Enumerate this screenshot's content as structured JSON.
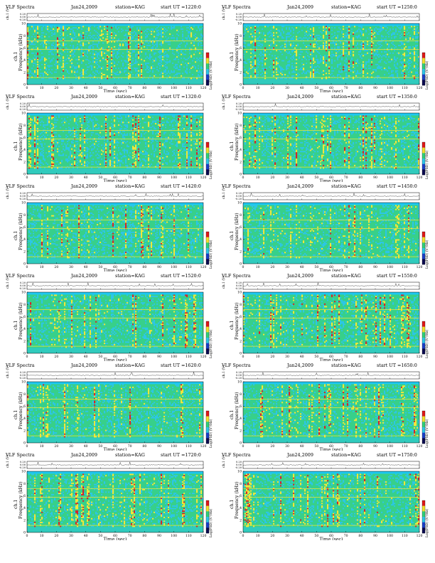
{
  "chart_data": [
    {
      "type": "heatmap",
      "title": "VLF Spectra",
      "date": "Jan24,2009",
      "station": "station=KAG",
      "start": "start  UT  =1220:0",
      "ch_label": "ch.1 (V)",
      "ch_ticks": [
        "0.20",
        "0.00",
        "-0.20"
      ],
      "ylabel_top": "ch.1",
      "ylabel": "Frequency  (kHz)",
      "y_ticks": [
        "0",
        "2",
        "4",
        "6",
        "8",
        "10"
      ],
      "ylim": [
        0,
        10
      ],
      "xlabel": "Time  (sec)",
      "x_ticks": [
        "0",
        "10",
        "20",
        "30",
        "40",
        "50",
        "60",
        "70",
        "80",
        "90",
        "100",
        "110",
        "120"
      ],
      "xlim": [
        0,
        120
      ],
      "colorbar_label": "Log(PSD) (V²/Hz)",
      "seed": 11
    },
    {
      "type": "heatmap",
      "title": "VLF Spectra",
      "date": "Jan24,2009",
      "station": "station=KAG",
      "start": "start  UT  =1250:0",
      "ch_label": "ch.1 (V)",
      "ch_ticks": [
        "0.20",
        "0.00",
        "-0.20"
      ],
      "ylabel_top": "ch.1",
      "ylabel": "Frequency  (kHz)",
      "y_ticks": [
        "0",
        "2",
        "4",
        "6",
        "8",
        "10"
      ],
      "ylim": [
        0,
        10
      ],
      "xlabel": "Time  (sec)",
      "x_ticks": [
        "0",
        "10",
        "20",
        "30",
        "40",
        "50",
        "60",
        "70",
        "80",
        "90",
        "100",
        "110",
        "120"
      ],
      "xlim": [
        0,
        120
      ],
      "colorbar_label": "Log(PSD) (V²/Hz)",
      "seed": 23
    },
    {
      "type": "heatmap",
      "title": "VLF Spectra",
      "date": "Jan24,2009",
      "station": "station=KAG",
      "start": "start  UT  =1320:0",
      "ch_label": "ch.1 (V)",
      "ch_ticks": [
        "0.20",
        "0.00",
        "-0.20"
      ],
      "ylabel_top": "ch.1",
      "ylabel": "Frequency  (kHz)",
      "y_ticks": [
        "0",
        "2",
        "4",
        "6",
        "8",
        "10"
      ],
      "ylim": [
        0,
        10
      ],
      "xlabel": "Time  (sec)",
      "x_ticks": [
        "0",
        "10",
        "20",
        "30",
        "40",
        "50",
        "60",
        "70",
        "80",
        "90",
        "100",
        "110",
        "120"
      ],
      "xlim": [
        0,
        120
      ],
      "colorbar_label": "Log(PSD) (V²/Hz)",
      "seed": 37
    },
    {
      "type": "heatmap",
      "title": "VLF Spectra",
      "date": "Jan24,2009",
      "station": "station=KAG",
      "start": "start  UT  =1350:0",
      "ch_label": "ch.1 (V)",
      "ch_ticks": [
        "0.20",
        "0.00",
        "-0.20"
      ],
      "ylabel_top": "ch.1",
      "ylabel": "Frequency  (kHz)",
      "y_ticks": [
        "0",
        "2",
        "4",
        "6",
        "8",
        "10"
      ],
      "ylim": [
        0,
        10
      ],
      "xlabel": "Time  (sec)",
      "x_ticks": [
        "0",
        "10",
        "20",
        "30",
        "40",
        "50",
        "60",
        "70",
        "80",
        "90",
        "100",
        "110",
        "120"
      ],
      "xlim": [
        0,
        120
      ],
      "colorbar_label": "Log(PSD) (V²/Hz)",
      "seed": 41
    },
    {
      "type": "heatmap",
      "title": "VLF Spectra",
      "date": "Jan24,2009",
      "station": "station=KAG",
      "start": "start  UT  =1420:0",
      "ch_label": "ch.1 (V)",
      "ch_ticks": [
        "0.20",
        "0.00",
        "-0.20"
      ],
      "ylabel_top": "ch.1",
      "ylabel": "Frequency  (kHz)",
      "y_ticks": [
        "0",
        "2",
        "4",
        "6",
        "8",
        "10"
      ],
      "ylim": [
        0,
        10
      ],
      "xlabel": "Time  (sec)",
      "x_ticks": [
        "0",
        "10",
        "20",
        "30",
        "40",
        "50",
        "60",
        "70",
        "80",
        "90",
        "100",
        "110",
        "120"
      ],
      "xlim": [
        0,
        120
      ],
      "colorbar_label": "Log(PSD) (V²/Hz)",
      "seed": 53
    },
    {
      "type": "heatmap",
      "title": "VLF Spectra",
      "date": "Jan24,2009",
      "station": "station=KAG",
      "start": "start  UT  =1450:0",
      "ch_label": "ch.1 (V)",
      "ch_ticks": [
        "0.20",
        "0.00",
        "-0.20"
      ],
      "ylabel_top": "ch.1",
      "ylabel": "Frequency  (kHz)",
      "y_ticks": [
        "0",
        "2",
        "4",
        "6",
        "8",
        "10"
      ],
      "ylim": [
        0,
        10
      ],
      "xlabel": "Time  (sec)",
      "x_ticks": [
        "0",
        "10",
        "20",
        "30",
        "40",
        "50",
        "60",
        "70",
        "80",
        "90",
        "100",
        "110",
        "120"
      ],
      "xlim": [
        0,
        120
      ],
      "colorbar_label": "Log(PSD) (V²/Hz)",
      "seed": 67
    },
    {
      "type": "heatmap",
      "title": "VLF Spectra",
      "date": "Jan24,2009",
      "station": "station=KAG",
      "start": "start  UT  =1520:0",
      "ch_label": "ch.1 (V)",
      "ch_ticks": [
        "0.20",
        "0.00",
        "-0.20"
      ],
      "ylabel_top": "ch.1",
      "ylabel": "Frequency  (kHz)",
      "y_ticks": [
        "0",
        "2",
        "4",
        "6",
        "8",
        "10"
      ],
      "ylim": [
        0,
        10
      ],
      "xlabel": "Time  (sec)",
      "x_ticks": [
        "0",
        "10",
        "20",
        "30",
        "40",
        "50",
        "60",
        "70",
        "80",
        "90",
        "100",
        "110",
        "120"
      ],
      "xlim": [
        0,
        120
      ],
      "colorbar_label": "Log(PSD) (V²/Hz)",
      "seed": 71
    },
    {
      "type": "heatmap",
      "title": "VLF Spectra",
      "date": "Jan24,2009",
      "station": "station=KAG",
      "start": "start  UT  =1550:0",
      "ch_label": "ch.1 (V)",
      "ch_ticks": [
        "0.20",
        "0.00",
        "-0.20"
      ],
      "ylabel_top": "ch.1",
      "ylabel": "Frequency  (kHz)",
      "y_ticks": [
        "0",
        "2",
        "4",
        "6",
        "8",
        "10"
      ],
      "ylim": [
        0,
        10
      ],
      "xlabel": "Time  (sec)",
      "x_ticks": [
        "0",
        "10",
        "20",
        "30",
        "40",
        "50",
        "60",
        "70",
        "80",
        "90",
        "100",
        "110",
        "120"
      ],
      "xlim": [
        0,
        120
      ],
      "colorbar_label": "Log(PSD) (V²/Hz)",
      "seed": 83
    },
    {
      "type": "heatmap",
      "title": "VLF Spectra",
      "date": "Jan24,2009",
      "station": "station=KAG",
      "start": "start  UT  =1620:0",
      "ch_label": "ch.1 (V)",
      "ch_ticks": [
        "0.20",
        "0.00",
        "-0.20"
      ],
      "ylabel_top": "ch.1",
      "ylabel": "Frequency  (kHz)",
      "y_ticks": [
        "0",
        "2",
        "4",
        "6",
        "8",
        "10"
      ],
      "ylim": [
        0,
        10
      ],
      "xlabel": "Time  (sec)",
      "x_ticks": [
        "0",
        "10",
        "20",
        "30",
        "40",
        "50",
        "60",
        "70",
        "80",
        "90",
        "100",
        "110",
        "120"
      ],
      "xlim": [
        0,
        120
      ],
      "colorbar_label": "Log(PSD) (V²/Hz)",
      "seed": 97
    },
    {
      "type": "heatmap",
      "title": "VLF Spectra",
      "date": "Jan24,2009",
      "station": "station=KAG",
      "start": "start  UT  =1650:0",
      "ch_label": "ch.1 (V)",
      "ch_ticks": [
        "0.20",
        "0.00",
        "-0.20"
      ],
      "ylabel_top": "ch.1",
      "ylabel": "Frequency  (kHz)",
      "y_ticks": [
        "0",
        "2",
        "4",
        "6",
        "8",
        "10"
      ],
      "ylim": [
        0,
        10
      ],
      "xlabel": "Time  (sec)",
      "x_ticks": [
        "0",
        "10",
        "20",
        "30",
        "40",
        "50",
        "60",
        "70",
        "80",
        "90",
        "100",
        "110",
        "120"
      ],
      "xlim": [
        0,
        120
      ],
      "colorbar_label": "Log(PSD) (V²/Hz)",
      "seed": 101
    },
    {
      "type": "heatmap",
      "title": "VLF Spectra",
      "date": "Jan24,2009",
      "station": "station=KAG",
      "start": "start  UT  =1720:0",
      "ch_label": "ch.1 (V)",
      "ch_ticks": [
        "0.20",
        "0.00",
        "-0.20"
      ],
      "ylabel_top": "ch.1",
      "ylabel": "Frequency  (kHz)",
      "y_ticks": [
        "0",
        "2",
        "4",
        "6",
        "8",
        "10"
      ],
      "ylim": [
        0,
        10
      ],
      "xlabel": "Time  (sec)",
      "x_ticks": [
        "0",
        "10",
        "20",
        "30",
        "40",
        "50",
        "60",
        "70",
        "80",
        "90",
        "100",
        "110",
        "120"
      ],
      "xlim": [
        0,
        120
      ],
      "colorbar_label": "Log(PSD) (V²/Hz)",
      "seed": 113
    },
    {
      "type": "heatmap",
      "title": "VLF Spectra",
      "date": "Jan24,2009",
      "station": "station=KAG",
      "start": "start  UT  =1750:0",
      "ch_label": "ch.1 (V)",
      "ch_ticks": [
        "0.20",
        "0.00",
        "-0.20"
      ],
      "ylabel_top": "ch.1",
      "ylabel": "Frequency  (kHz)",
      "y_ticks": [
        "0",
        "2",
        "4",
        "6",
        "8",
        "10"
      ],
      "ylim": [
        0,
        10
      ],
      "xlabel": "Time  (sec)",
      "x_ticks": [
        "0",
        "10",
        "20",
        "30",
        "40",
        "50",
        "60",
        "70",
        "80",
        "90",
        "100",
        "110",
        "120"
      ],
      "xlim": [
        0,
        120
      ],
      "colorbar_label": "Log(PSD) (V²/Hz)",
      "seed": 127
    }
  ],
  "colors": {
    "background_band": "#1ec8f0",
    "spectrogram_base": "#37d08a",
    "cyan": "#2cc6e8",
    "yellow": "#f4e63a",
    "red": "#d8202a",
    "blue": "#1a3fc8"
  }
}
